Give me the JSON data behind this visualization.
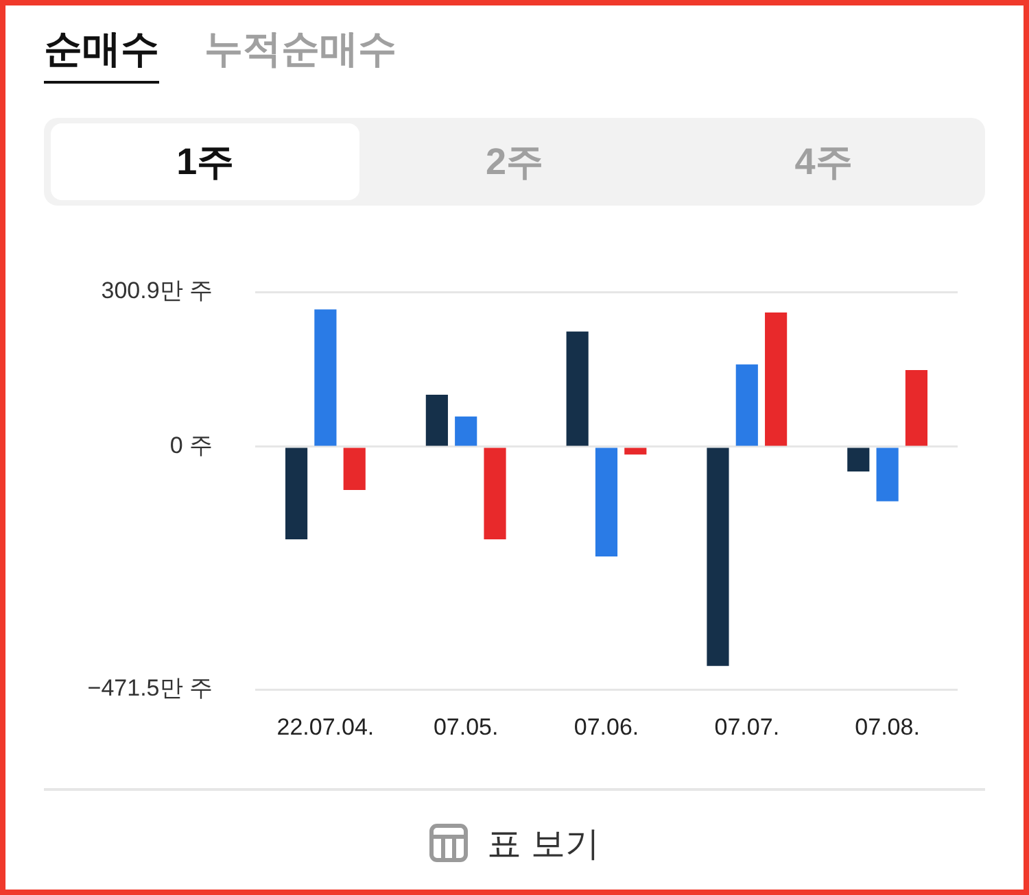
{
  "chart_data": {
    "type": "bar",
    "categories": [
      "22.07.04.",
      "07.05.",
      "07.06.",
      "07.07.",
      "07.08."
    ],
    "series": [
      {
        "color": "#15304a",
        "values": [
          -180,
          101,
          224,
          -426,
          -48
        ]
      },
      {
        "color": "#2a7be6",
        "values": [
          267,
          59,
          -213,
          160,
          -106
        ]
      },
      {
        "color": "#e8292b",
        "values": [
          -84,
          -180,
          -15,
          261,
          149
        ]
      }
    ],
    "ylim": [
      -471.5,
      300.9
    ],
    "yticks": [
      {
        "value": 300.9,
        "label": "300.9만 주"
      },
      {
        "value": 0,
        "label": "0 주"
      },
      {
        "value": -471.5,
        "label": "−471.5만 주"
      }
    ],
    "grid": "y",
    "annotations": [
      "순매수",
      "누적순매수",
      "1주",
      "2주",
      "4주",
      "표 보기"
    ]
  }
}
